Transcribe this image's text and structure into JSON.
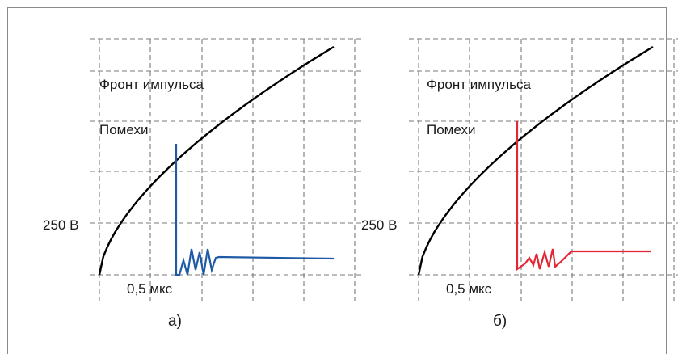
{
  "chart_data": [
    {
      "type": "line",
      "panel_label": "а)",
      "annotations": [
        "Фронт импульса",
        "Помехи"
      ],
      "ytick_label": "250 В",
      "xtick_label": "0,5 мкс",
      "series_colors": {
        "front": "#000000",
        "noise": "#1f5aa6"
      },
      "grid": true
    },
    {
      "type": "line",
      "panel_label": "б)",
      "annotations": [
        "Фронт импульса",
        "Помехи"
      ],
      "ytick_label": "250 В",
      "xtick_label": "0,5 мкс",
      "series_colors": {
        "front": "#000000",
        "noise": "#e32636"
      },
      "grid": true
    }
  ]
}
